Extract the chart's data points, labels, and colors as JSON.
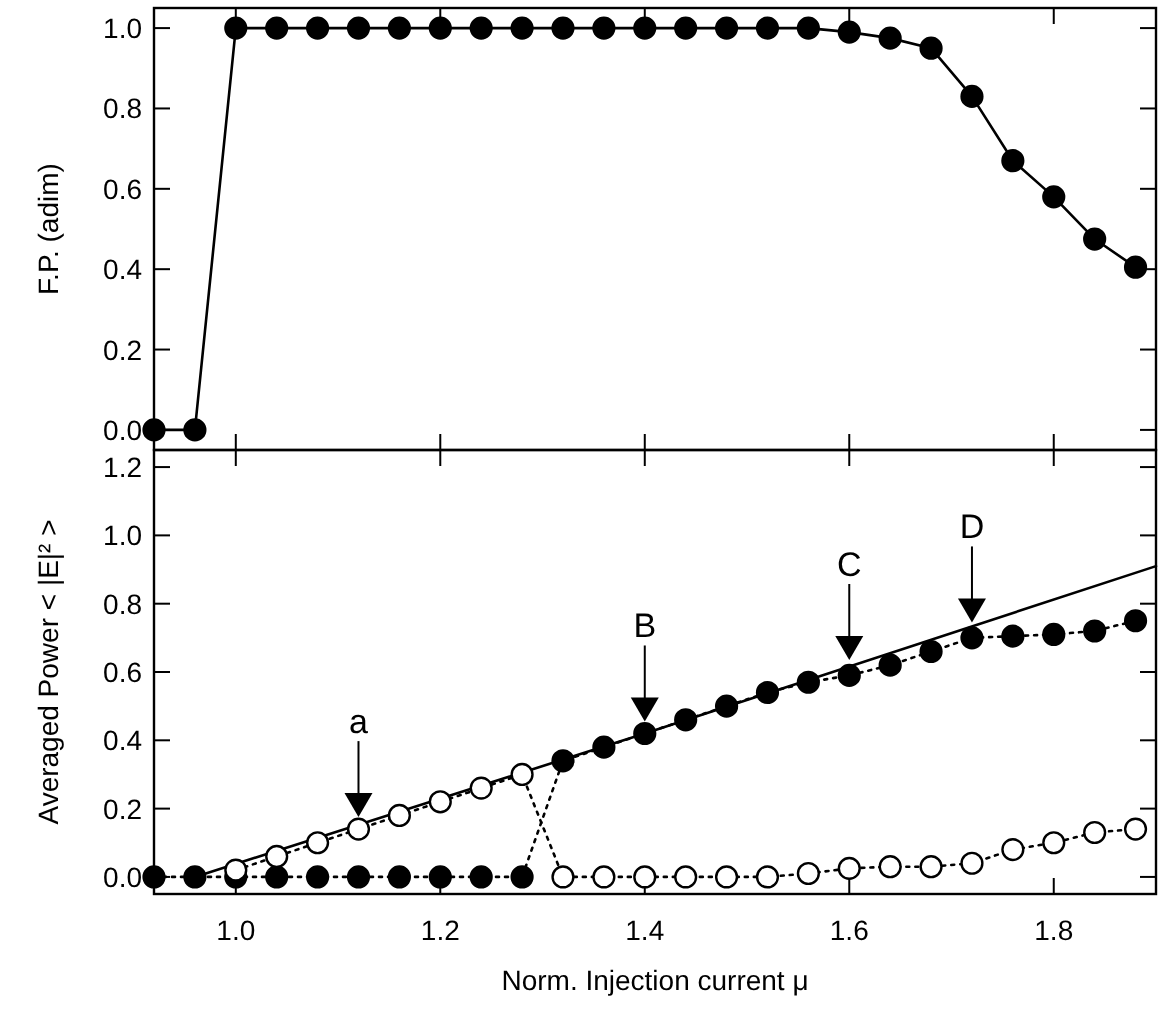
{
  "chart_data": [
    {
      "type": "line",
      "ylabel": "F.P. (adim)",
      "xlim": [
        0.92,
        1.9
      ],
      "ylim": [
        -0.05,
        1.05
      ],
      "xticks": [
        {
          "value": 1.0,
          "label": null
        },
        {
          "value": 1.2,
          "label": null
        },
        {
          "value": 1.4,
          "label": null
        },
        {
          "value": 1.6,
          "label": null
        },
        {
          "value": 1.8,
          "label": null
        }
      ],
      "yticks": [
        {
          "value": 0,
          "label": "0.0"
        },
        {
          "value": 0.2,
          "label": "0.2"
        },
        {
          "value": 0.4,
          "label": "0.4"
        },
        {
          "value": 0.6,
          "label": "0.6"
        },
        {
          "value": 0.8,
          "label": "0.8"
        },
        {
          "value": 1.0,
          "label": "1.0"
        }
      ],
      "tick_labels": "y",
      "marker": "circle",
      "line_style": "solid",
      "x": [
        0.92,
        0.96,
        1.0,
        1.04,
        1.08,
        1.12,
        1.16,
        1.2,
        1.24,
        1.28,
        1.32,
        1.36,
        1.4,
        1.44,
        1.48,
        1.52,
        1.56,
        1.6,
        1.64,
        1.68,
        1.72,
        1.76,
        1.8,
        1.84,
        1.88
      ],
      "series": [
        {
          "color": "#000000",
          "values": [
            0,
            0,
            1,
            1,
            1,
            1,
            1,
            1,
            1,
            1,
            1,
            1,
            1,
            1,
            1,
            1,
            1,
            0.99,
            0.975,
            0.95,
            0.83,
            0.67,
            0.58,
            0.475,
            0.405
          ]
        }
      ]
    },
    {
      "type": "line",
      "xlabel": "Norm. Injection current  μ",
      "ylabel": "Averaged Power  < |E|² >",
      "xlim": [
        0.92,
        1.9
      ],
      "ylim": [
        -0.05,
        1.25
      ],
      "xticks": [
        {
          "value": 1.0,
          "label": "1.0"
        },
        {
          "value": 1.2,
          "label": "1.2"
        },
        {
          "value": 1.4,
          "label": "1.4"
        },
        {
          "value": 1.6,
          "label": "1.6"
        },
        {
          "value": 1.8,
          "label": "1.8"
        }
      ],
      "yticks": [
        {
          "value": 0,
          "label": "0.0"
        },
        {
          "value": 0.2,
          "label": "0.2"
        },
        {
          "value": 0.4,
          "label": "0.4"
        },
        {
          "value": 0.6,
          "label": "0.6"
        },
        {
          "value": 0.8,
          "label": "0.8"
        },
        {
          "value": 1.0,
          "label": "1.0"
        },
        {
          "value": 1.2,
          "label": "1.2"
        }
      ],
      "x": [
        0.92,
        0.96,
        1.0,
        1.04,
        1.08,
        1.12,
        1.16,
        1.2,
        1.24,
        1.28,
        1.32,
        1.36,
        1.4,
        1.44,
        1.48,
        1.52,
        1.56,
        1.6,
        1.64,
        1.68,
        1.72,
        1.76,
        1.8,
        1.84,
        1.88
      ],
      "series": [
        {
          "color": "#000000",
          "line_style": "solid",
          "x": [
            0.96,
            1.4,
            1.9
          ],
          "values": [
            0,
            0.42,
            0.91
          ]
        },
        {
          "color": "#000000",
          "marker": "circle",
          "line_style": "dotted",
          "values": [
            0,
            0,
            0,
            0,
            0,
            0,
            0,
            0,
            0,
            0,
            0.34,
            0.38,
            0.42,
            0.46,
            0.5,
            0.54,
            0.57,
            0.59,
            0.62,
            0.66,
            0.7,
            0.705,
            0.71,
            0.72,
            0.75
          ]
        },
        {
          "color": "#ffffff",
          "marker": "circle",
          "line_style": "dotted",
          "values": [
            null,
            null,
            0.02,
            0.06,
            0.1,
            0.14,
            0.18,
            0.22,
            0.26,
            0.3,
            0,
            0,
            0,
            0,
            0,
            0,
            0.01,
            0.025,
            0.03,
            0.03,
            0.04,
            0.08,
            0.1,
            0.13,
            0.14
          ]
        }
      ],
      "annotations": [
        {
          "text": "a",
          "x": 1.12,
          "y": 0.14
        },
        {
          "text": "B",
          "x": 1.4,
          "y": 0.42
        },
        {
          "text": "C",
          "x": 1.6,
          "y": 0.6
        },
        {
          "text": "D",
          "x": 1.72,
          "y": 0.71
        }
      ]
    }
  ]
}
